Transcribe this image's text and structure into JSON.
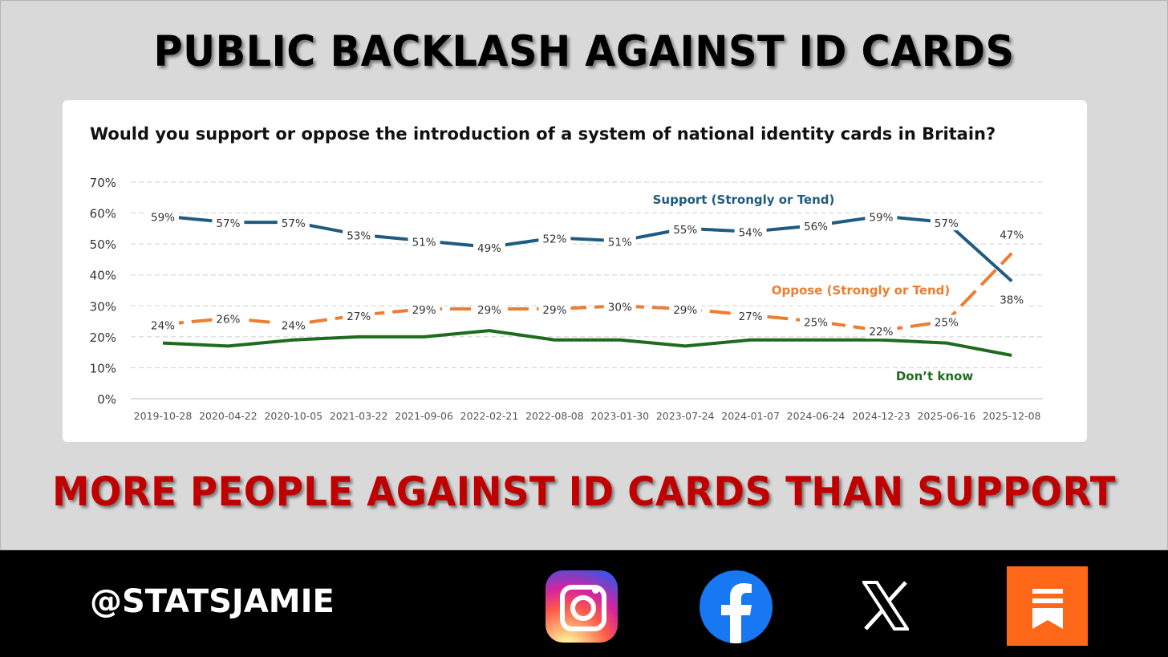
{
  "headline": "PUBLIC BACKLASH AGAINST ID CARDS",
  "subheadline": "MORE PEOPLE AGAINST ID CARDS THAN SUPPORT",
  "footer": {
    "handle": "@STATSJAMIE",
    "icons": [
      "instagram-icon",
      "facebook-icon",
      "x-icon",
      "substack-icon"
    ]
  },
  "chart_data": {
    "type": "line",
    "title": "Would you support or oppose the introduction of a system of national identity cards in Britain?",
    "categories": [
      "2019-10-28",
      "2020-04-22",
      "2020-10-05",
      "2021-03-22",
      "2021-09-06",
      "2022-02-21",
      "2022-08-08",
      "2023-01-30",
      "2023-07-24",
      "2024-01-07",
      "2024-06-24",
      "2024-12-23",
      "2025-06-16",
      "2025-12-08"
    ],
    "ylim": [
      0,
      70
    ],
    "yticks": [
      "0%",
      "10%",
      "20%",
      "30%",
      "40%",
      "50%",
      "60%",
      "70%"
    ],
    "grid": true,
    "series": [
      {
        "name": "Support (Strongly or Tend)",
        "color": "#1f5b80",
        "values": [
          59,
          57,
          57,
          53,
          51,
          49,
          52,
          51,
          55,
          54,
          56,
          59,
          57,
          38
        ],
        "labels": [
          "59%",
          "57%",
          "57%",
          "53%",
          "51%",
          "49%",
          "52%",
          "51%",
          "55%",
          "54%",
          "56%",
          "59%",
          "57%",
          "38%"
        ]
      },
      {
        "name": "Oppose (Strongly or Tend)",
        "color": "#ed7d31",
        "values": [
          24,
          26,
          24,
          27,
          29,
          29,
          29,
          30,
          29,
          27,
          25,
          22,
          25,
          47
        ],
        "labels": [
          "24%",
          "26%",
          "24%",
          "27%",
          "29%",
          "29%",
          "29%",
          "30%",
          "29%",
          "27%",
          "25%",
          "22%",
          "25%",
          "47%"
        ]
      },
      {
        "name": "Don’t know",
        "color": "#1e6b1e",
        "values": [
          18,
          17,
          19,
          20,
          20,
          22,
          19,
          19,
          17,
          19,
          19,
          19,
          18,
          14
        ]
      }
    ]
  }
}
